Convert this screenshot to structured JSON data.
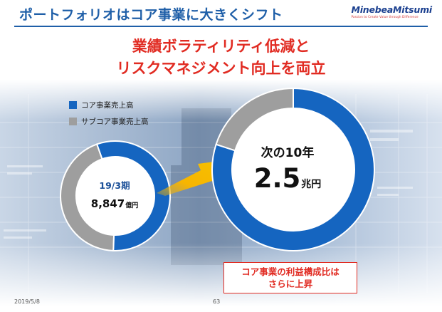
{
  "header": {
    "title": "ポートフォリオはコア事業に大きくシフト",
    "logo_name": "MinebeaMitsumi",
    "logo_tagline": "Passion to Create Value through Difference"
  },
  "subtitle": {
    "line1": "業績ボラティリティ低減と",
    "line2": "リスクマネジメント向上を両立"
  },
  "legend": [
    {
      "label": "コア事業売上高",
      "color": "#1565c0"
    },
    {
      "label": "サブコア事業売上高",
      "color": "#9e9e9e"
    }
  ],
  "chart_data": [
    {
      "type": "pie",
      "title": "19/3期",
      "center_value": "8,847",
      "center_unit": "億円",
      "categories": [
        "コア事業売上高",
        "サブコア事業売上高"
      ],
      "values": [
        56,
        44
      ],
      "colors": [
        "#1565c0",
        "#9e9e9e"
      ]
    },
    {
      "type": "pie",
      "title": "次の10年",
      "center_value": "2.5",
      "center_unit": "兆円",
      "categories": [
        "コア事業売上高",
        "サブコア事業売上高"
      ],
      "values": [
        80,
        20
      ],
      "colors": [
        "#1565c0",
        "#9e9e9e"
      ]
    }
  ],
  "callout": {
    "line1": "コア事業の利益構成比は",
    "line2": "さらに上昇"
  },
  "footer": {
    "date": "2019/5/8",
    "page": "63"
  }
}
